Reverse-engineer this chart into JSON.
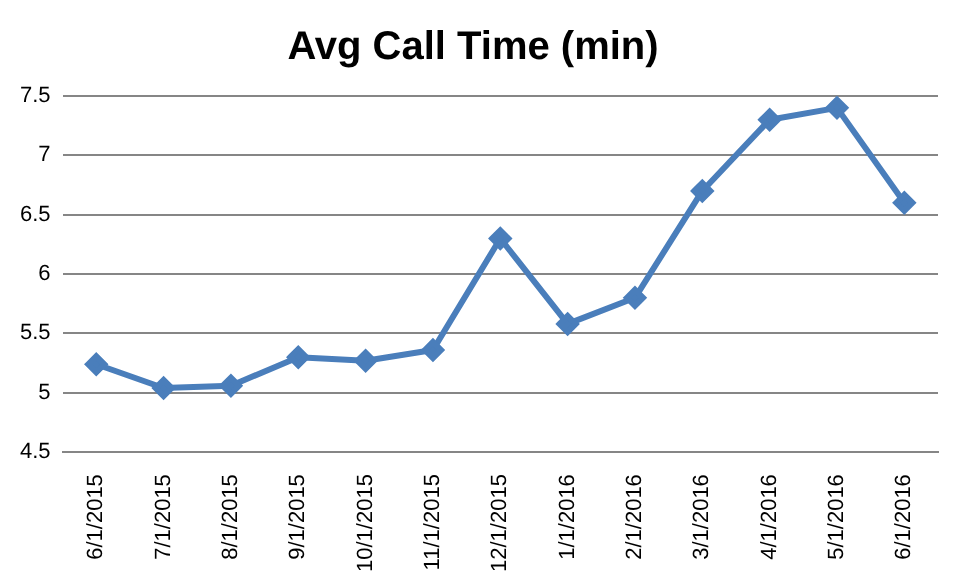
{
  "chart_data": {
    "type": "line",
    "title": "Avg Call Time (min)",
    "categories": [
      "6/1/2015",
      "7/1/2015",
      "8/1/2015",
      "9/1/2015",
      "10/1/2015",
      "11/1/2015",
      "12/1/2015",
      "1/1/2016",
      "2/1/2016",
      "3/1/2016",
      "4/1/2016",
      "5/1/2016",
      "6/1/2016"
    ],
    "series": [
      {
        "color": "#4a7ebb",
        "values": [
          5.24,
          5.04,
          5.06,
          5.3,
          5.27,
          5.36,
          6.3,
          5.58,
          5.8,
          6.7,
          7.3,
          7.4,
          6.6
        ]
      }
    ],
    "ylim": [
      4.5,
      7.5
    ],
    "yticks": [
      4.5,
      5,
      5.5,
      6,
      6.5,
      7,
      7.5
    ],
    "grid": "y",
    "legend": false,
    "marker": "diamond",
    "line_style": "solid"
  }
}
